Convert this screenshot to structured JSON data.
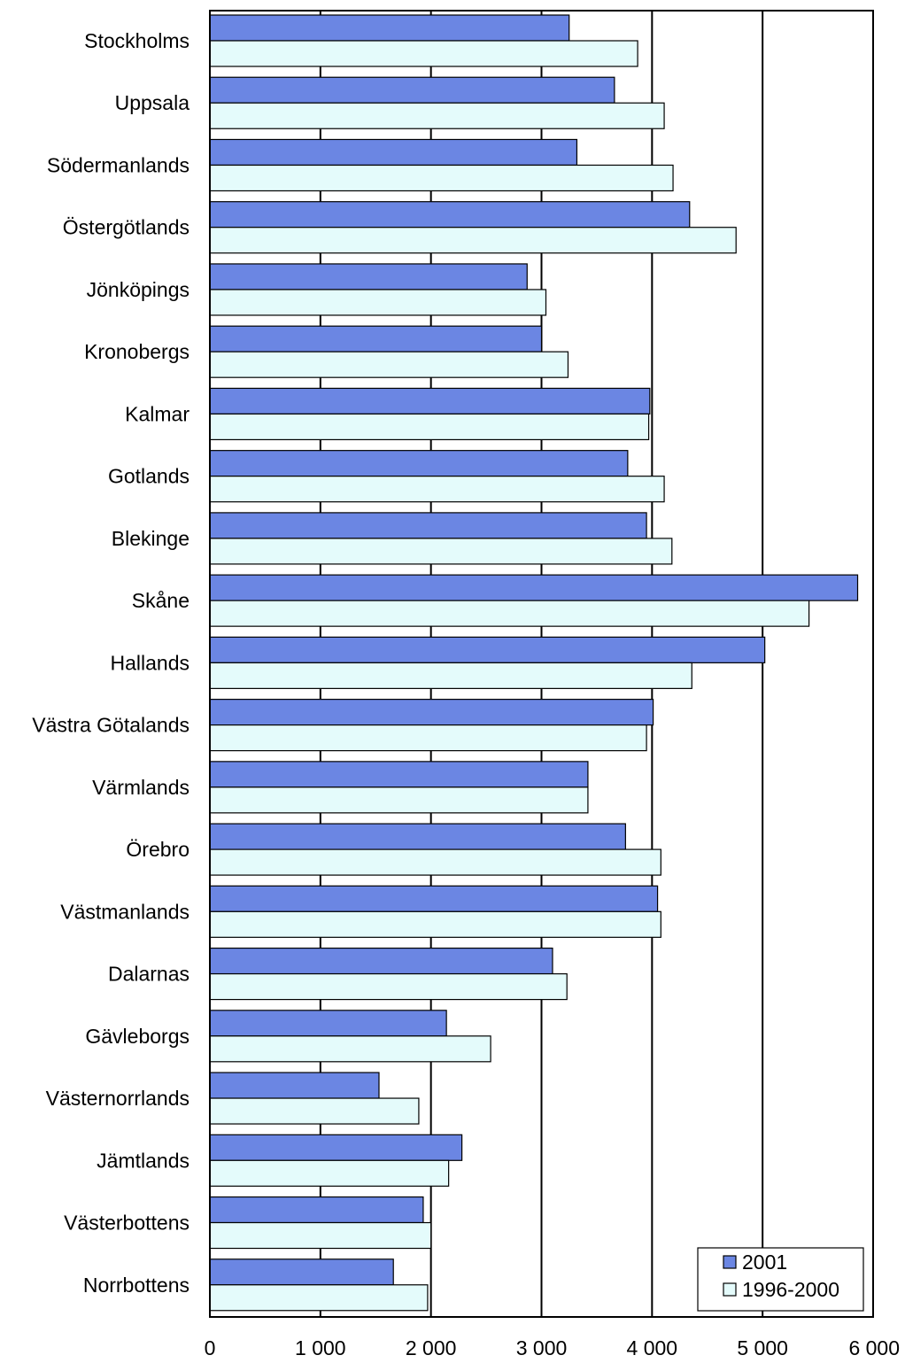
{
  "chart_data": {
    "type": "bar",
    "orientation": "horizontal",
    "categories": [
      "Stockholms",
      "Uppsala",
      "Södermanlands",
      "Östergötlands",
      "Jönköpings",
      "Kronobergs",
      "Kalmar",
      "Gotlands",
      "Blekinge",
      "Skåne",
      "Hallands",
      "Västra Götalands",
      "Värmlands",
      "Örebro",
      "Västmanlands",
      "Dalarnas",
      "Gävleborgs",
      "Västernorrlands",
      "Jämtlands",
      "Västerbottens",
      "Norrbottens"
    ],
    "series": [
      {
        "name": "2001",
        "color": "#6b86e3",
        "values": [
          3250,
          3660,
          3320,
          4340,
          2870,
          3000,
          3980,
          3780,
          3950,
          5860,
          5020,
          4010,
          3420,
          3760,
          4050,
          3100,
          2140,
          1530,
          2280,
          1930,
          1660
        ]
      },
      {
        "name": "1996-2000",
        "color": "#e4fbfb",
        "values": [
          3870,
          4110,
          4190,
          4760,
          3040,
          3240,
          3970,
          4110,
          4180,
          5420,
          4360,
          3950,
          3420,
          4080,
          4080,
          3230,
          2540,
          1890,
          2160,
          2000,
          1970
        ]
      }
    ],
    "xlim": [
      0,
      6000
    ],
    "x_ticks": [
      "0",
      "1 000",
      "2 000",
      "3 000",
      "4 000",
      "5 000",
      "6 000"
    ],
    "x_tick_values": [
      0,
      1000,
      2000,
      3000,
      4000,
      5000,
      6000
    ],
    "grid": "vertical major gridlines",
    "legend_placement": "bottom-right"
  }
}
